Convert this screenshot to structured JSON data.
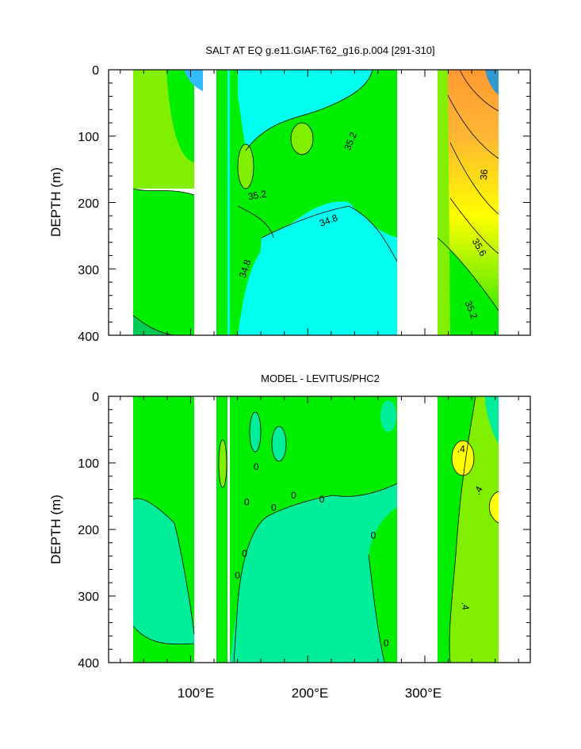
{
  "chart_data": [
    {
      "type": "heatmap",
      "title": "SALT AT EQ g.e11.GIAF.T62_g16.p.004 [291-310]",
      "xlabel": "",
      "ylabel": "DEPTH (m)",
      "xlim": [
        30,
        390
      ],
      "ylim": [
        400,
        0
      ],
      "yticks": [
        "0",
        "100",
        "200",
        "300",
        "400"
      ],
      "xticks": [],
      "contour_labels": [
        {
          "text": "35.2",
          "x": 237,
          "y": 108,
          "rot": -68
        },
        {
          "text": "35.2",
          "x": 157,
          "y": 190,
          "rot": -10
        },
        {
          "text": "34.8",
          "x": 218,
          "y": 228,
          "rot": -20
        },
        {
          "text": "34.8",
          "x": 147,
          "y": 300,
          "rot": -72
        },
        {
          "text": "36",
          "x": 351,
          "y": 158,
          "rot": -85
        },
        {
          "text": "35.6",
          "x": 346,
          "y": 268,
          "rot": 60
        },
        {
          "text": "35.2",
          "x": 339,
          "y": 362,
          "rot": 68
        }
      ],
      "colors": {
        "low": "#00ffee",
        "mid": "#00ee00",
        "midhigh": "#80f000",
        "high": "#ffff00",
        "orange": "#ff9933"
      }
    },
    {
      "type": "heatmap",
      "title": "MODEL - LEVITUS/PHC2",
      "xlabel": "",
      "ylabel": "DEPTH (m)",
      "xlim": [
        30,
        390
      ],
      "ylim": [
        400,
        0
      ],
      "yticks": [
        "0",
        "100",
        "200",
        "300",
        "400"
      ],
      "xticks": [
        "100°E",
        "200°E",
        "300°E"
      ],
      "contour_labels": [
        {
          "text": "0",
          "x": 156,
          "y": 107,
          "rot": 0
        },
        {
          "text": "0",
          "x": 148,
          "y": 160,
          "rot": 0
        },
        {
          "text": "0",
          "x": 171,
          "y": 168,
          "rot": 0
        },
        {
          "text": "0",
          "x": 188,
          "y": 150,
          "rot": 0
        },
        {
          "text": "0",
          "x": 212,
          "y": 156,
          "rot": 0
        },
        {
          "text": "0",
          "x": 256,
          "y": 210,
          "rot": 0
        },
        {
          "text": "0",
          "x": 146,
          "y": 237,
          "rot": 0
        },
        {
          "text": "0",
          "x": 140,
          "y": 270,
          "rot": 0
        },
        {
          "text": "0",
          "x": 267,
          "y": 372,
          "rot": 0
        },
        {
          "text": ".4",
          "x": 331,
          "y": 80,
          "rot": 0
        },
        {
          "text": ".4",
          "x": 346,
          "y": 142,
          "rot": -60
        },
        {
          "text": ".4",
          "x": 334,
          "y": 315,
          "rot": 85
        }
      ],
      "colors": {
        "low": "#00ee99",
        "mid": "#00ee00",
        "midhigh": "#80f000",
        "high": "#ffff00"
      }
    }
  ]
}
